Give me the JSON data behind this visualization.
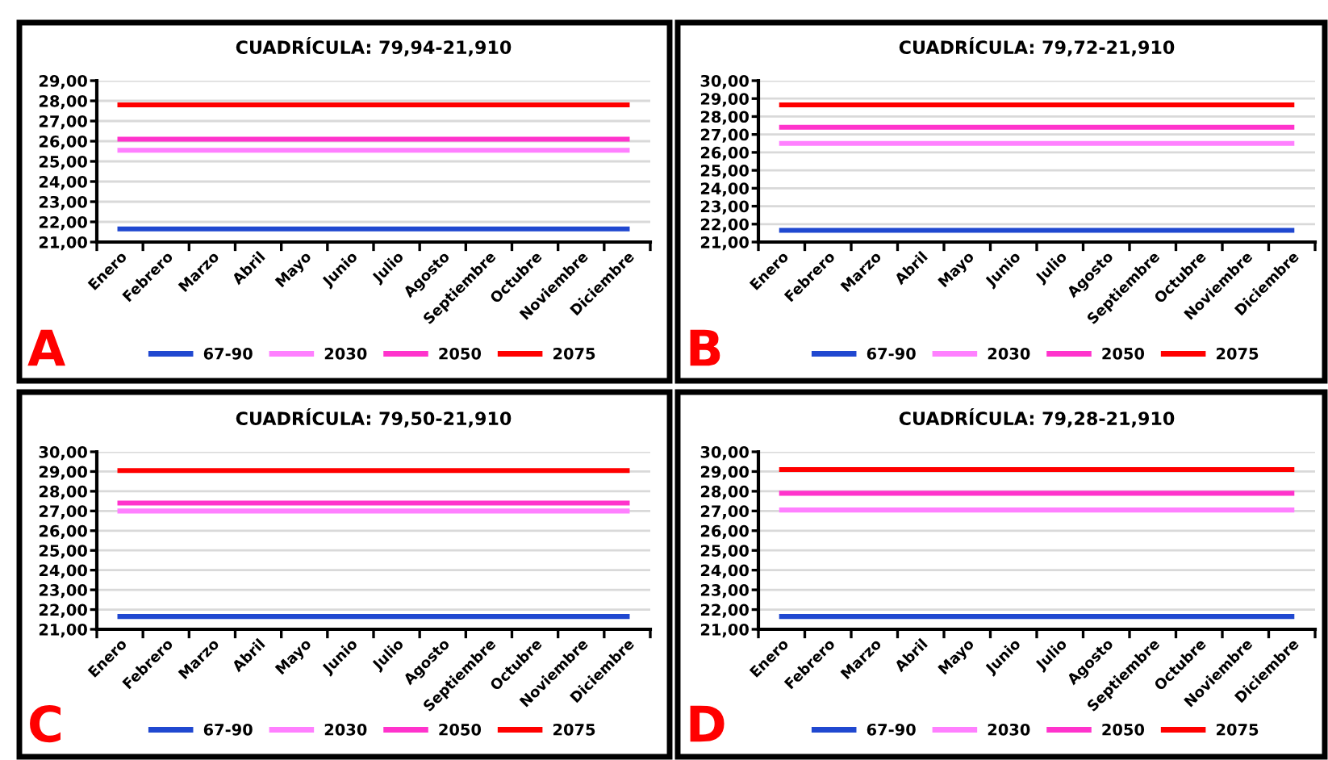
{
  "chart_data": [
    {
      "type": "line",
      "title": "CUADRÍCULA: 79,94-21,910",
      "categories": [
        "Enero",
        "Febrero",
        "Marzo",
        "Abril",
        "Mayo",
        "Junio",
        "Julio",
        "Agosto",
        "Septiembre",
        "Octubre",
        "Noviembre",
        "Diciembre"
      ],
      "series": [
        {
          "name": "67-90",
          "color": "#2048d0",
          "values": [
            21.65,
            21.65,
            21.65,
            21.65,
            21.65,
            21.65,
            21.65,
            21.65,
            21.65,
            21.65,
            21.65,
            21.65
          ]
        },
        {
          "name": "2030",
          "color": "#ff80ff",
          "values": [
            25.55,
            25.55,
            25.55,
            25.55,
            25.55,
            25.55,
            25.55,
            25.55,
            25.55,
            25.55,
            25.55,
            25.55
          ]
        },
        {
          "name": "2050",
          "color": "#ff33cc",
          "values": [
            26.1,
            26.1,
            26.1,
            26.1,
            26.1,
            26.1,
            26.1,
            26.1,
            26.1,
            26.1,
            26.1,
            26.1
          ]
        },
        {
          "name": "2075",
          "color": "#ff0000",
          "values": [
            27.8,
            27.8,
            27.8,
            27.8,
            27.8,
            27.8,
            27.8,
            27.8,
            27.8,
            27.8,
            27.8,
            27.8
          ]
        }
      ],
      "ylim": [
        21,
        29
      ],
      "yticks": [
        {
          "value": 21,
          "label": "21,00"
        },
        {
          "value": 22,
          "label": "22,00"
        },
        {
          "value": 23,
          "label": "23,00"
        },
        {
          "value": 24,
          "label": "24,00"
        },
        {
          "value": 25,
          "label": "25,00"
        },
        {
          "value": 26,
          "label": "26,00"
        },
        {
          "value": 27,
          "label": "27,00"
        },
        {
          "value": 28,
          "label": "28,00"
        },
        {
          "value": 29,
          "label": "29,00"
        }
      ],
      "grid": "y",
      "legend": "bottom",
      "marker": "none",
      "annotations": [
        "A"
      ]
    },
    {
      "type": "line",
      "title": "CUADRÍCULA: 79,72-21,910",
      "categories": [
        "Enero",
        "Febrero",
        "Marzo",
        "Abril",
        "Mayo",
        "Junio",
        "Julio",
        "Agosto",
        "Septiembre",
        "Octubre",
        "Noviembre",
        "Diciembre"
      ],
      "series": [
        {
          "name": "67-90",
          "color": "#2048d0",
          "values": [
            21.65,
            21.65,
            21.65,
            21.65,
            21.65,
            21.65,
            21.65,
            21.65,
            21.65,
            21.65,
            21.65,
            21.65
          ]
        },
        {
          "name": "2030",
          "color": "#ff80ff",
          "values": [
            26.5,
            26.5,
            26.5,
            26.5,
            26.5,
            26.5,
            26.5,
            26.5,
            26.5,
            26.5,
            26.5,
            26.5
          ]
        },
        {
          "name": "2050",
          "color": "#ff33cc",
          "values": [
            27.4,
            27.4,
            27.4,
            27.4,
            27.4,
            27.4,
            27.4,
            27.4,
            27.4,
            27.4,
            27.4,
            27.4
          ]
        },
        {
          "name": "2075",
          "color": "#ff0000",
          "values": [
            28.65,
            28.65,
            28.65,
            28.65,
            28.65,
            28.65,
            28.65,
            28.65,
            28.65,
            28.65,
            28.65,
            28.65
          ]
        }
      ],
      "ylim": [
        21,
        30
      ],
      "yticks": [
        {
          "value": 21,
          "label": "21,00"
        },
        {
          "value": 22,
          "label": "22,00"
        },
        {
          "value": 23,
          "label": "23,00"
        },
        {
          "value": 24,
          "label": "24,00"
        },
        {
          "value": 25,
          "label": "25,00"
        },
        {
          "value": 26,
          "label": "26,00"
        },
        {
          "value": 27,
          "label": "27,00"
        },
        {
          "value": 28,
          "label": "28,00"
        },
        {
          "value": 29,
          "label": "29,00"
        },
        {
          "value": 30,
          "label": "30,00"
        }
      ],
      "grid": "y",
      "legend": "bottom",
      "marker": "none",
      "annotations": [
        "B"
      ]
    },
    {
      "type": "line",
      "title": "CUADRÍCULA: 79,50-21,910",
      "categories": [
        "Enero",
        "Febrero",
        "Marzo",
        "Abril",
        "Mayo",
        "Junio",
        "Julio",
        "Agosto",
        "Septiembre",
        "Octubre",
        "Noviembre",
        "Diciembre"
      ],
      "series": [
        {
          "name": "67-90",
          "color": "#2048d0",
          "values": [
            21.65,
            21.65,
            21.65,
            21.65,
            21.65,
            21.65,
            21.65,
            21.65,
            21.65,
            21.65,
            21.65,
            21.65
          ]
        },
        {
          "name": "2030",
          "color": "#ff80ff",
          "values": [
            27.0,
            27.0,
            27.0,
            27.0,
            27.0,
            27.0,
            27.0,
            27.0,
            27.0,
            27.0,
            27.0,
            27.0
          ]
        },
        {
          "name": "2050",
          "color": "#ff33cc",
          "values": [
            27.4,
            27.4,
            27.4,
            27.4,
            27.4,
            27.4,
            27.4,
            27.4,
            27.4,
            27.4,
            27.4,
            27.4
          ]
        },
        {
          "name": "2075",
          "color": "#ff0000",
          "values": [
            29.05,
            29.05,
            29.05,
            29.05,
            29.05,
            29.05,
            29.05,
            29.05,
            29.05,
            29.05,
            29.05,
            29.05
          ]
        }
      ],
      "ylim": [
        21,
        30
      ],
      "yticks": [
        {
          "value": 21,
          "label": "21,00"
        },
        {
          "value": 22,
          "label": "22,00"
        },
        {
          "value": 23,
          "label": "23,00"
        },
        {
          "value": 24,
          "label": "24,00"
        },
        {
          "value": 25,
          "label": "25,00"
        },
        {
          "value": 26,
          "label": "26,00"
        },
        {
          "value": 27,
          "label": "27,00"
        },
        {
          "value": 28,
          "label": "28,00"
        },
        {
          "value": 29,
          "label": "29,00"
        },
        {
          "value": 30,
          "label": "30,00"
        }
      ],
      "grid": "y",
      "legend": "bottom",
      "marker": "none",
      "annotations": [
        "C"
      ]
    },
    {
      "type": "line",
      "title": "CUADRÍCULA: 79,28-21,910",
      "categories": [
        "Enero",
        "Febrero",
        "Marzo",
        "Abril",
        "Mayo",
        "Junio",
        "Julio",
        "Agosto",
        "Septiembre",
        "Octubre",
        "Noviembre",
        "Diciembre"
      ],
      "series": [
        {
          "name": "67-90",
          "color": "#2048d0",
          "values": [
            21.65,
            21.65,
            21.65,
            21.65,
            21.65,
            21.65,
            21.65,
            21.65,
            21.65,
            21.65,
            21.65,
            21.65
          ]
        },
        {
          "name": "2030",
          "color": "#ff80ff",
          "values": [
            27.05,
            27.05,
            27.05,
            27.05,
            27.05,
            27.05,
            27.05,
            27.05,
            27.05,
            27.05,
            27.05,
            27.05
          ]
        },
        {
          "name": "2050",
          "color": "#ff33cc",
          "values": [
            27.9,
            27.9,
            27.9,
            27.9,
            27.9,
            27.9,
            27.9,
            27.9,
            27.9,
            27.9,
            27.9,
            27.9
          ]
        },
        {
          "name": "2075",
          "color": "#ff0000",
          "values": [
            29.1,
            29.1,
            29.1,
            29.1,
            29.1,
            29.1,
            29.1,
            29.1,
            29.1,
            29.1,
            29.1,
            29.1
          ]
        }
      ],
      "ylim": [
        21,
        30
      ],
      "yticks": [
        {
          "value": 21,
          "label": "21,00"
        },
        {
          "value": 22,
          "label": "22,00"
        },
        {
          "value": 23,
          "label": "23,00"
        },
        {
          "value": 24,
          "label": "24,00"
        },
        {
          "value": 25,
          "label": "25,00"
        },
        {
          "value": 26,
          "label": "26,00"
        },
        {
          "value": 27,
          "label": "27,00"
        },
        {
          "value": 28,
          "label": "28,00"
        },
        {
          "value": 29,
          "label": "29,00"
        },
        {
          "value": 30,
          "label": "30,00"
        }
      ],
      "grid": "y",
      "legend": "bottom",
      "marker": "none",
      "annotations": [
        "D"
      ]
    }
  ]
}
